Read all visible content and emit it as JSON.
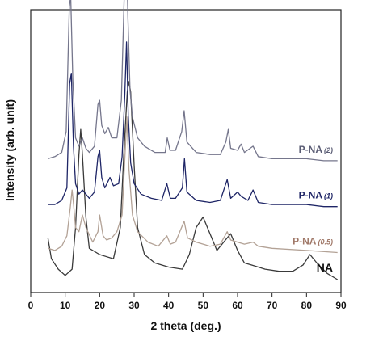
{
  "chart_data": {
    "type": "line",
    "title": "",
    "xlabel": "2 theta (deg.)",
    "ylabel": "Intensity (arb. unit)",
    "xlim": [
      0,
      90
    ],
    "xticks": [
      "0",
      "10",
      "20",
      "30",
      "40",
      "50",
      "60",
      "70",
      "80",
      "90"
    ],
    "y_ticks_shown": false,
    "grid": false,
    "legend": "inline labels at right of each curve",
    "series": [
      {
        "name": "NA",
        "label_main": "NA",
        "label_suffix": "",
        "color": "#3a3a3a",
        "label_color": "#111111",
        "baseline": 0.0,
        "points": [
          [
            5,
            0.2
          ],
          [
            6,
            0.1
          ],
          [
            8,
            0.05
          ],
          [
            10,
            0.02
          ],
          [
            12,
            0.05
          ],
          [
            13,
            0.25
          ],
          [
            14,
            0.6
          ],
          [
            14.5,
            0.72
          ],
          [
            15,
            0.6
          ],
          [
            16,
            0.3
          ],
          [
            17,
            0.15
          ],
          [
            20,
            0.12
          ],
          [
            24,
            0.1
          ],
          [
            26,
            0.25
          ],
          [
            27,
            0.6
          ],
          [
            28,
            0.9
          ],
          [
            28.5,
            0.95
          ],
          [
            29,
            0.9
          ],
          [
            30,
            0.55
          ],
          [
            31,
            0.25
          ],
          [
            33,
            0.12
          ],
          [
            36,
            0.08
          ],
          [
            40,
            0.06
          ],
          [
            44,
            0.05
          ],
          [
            46,
            0.12
          ],
          [
            48,
            0.25
          ],
          [
            50,
            0.3
          ],
          [
            52,
            0.22
          ],
          [
            54,
            0.14
          ],
          [
            56,
            0.18
          ],
          [
            58,
            0.22
          ],
          [
            60,
            0.14
          ],
          [
            62,
            0.08
          ],
          [
            64,
            0.07
          ],
          [
            68,
            0.05
          ],
          [
            72,
            0.04
          ],
          [
            76,
            0.04
          ],
          [
            79,
            0.07
          ],
          [
            81,
            0.12
          ],
          [
            83,
            0.08
          ],
          [
            86,
            0.03
          ],
          [
            89,
            0.0
          ]
        ]
      },
      {
        "name": "P-NA (0.5)",
        "label_main": "P-NA",
        "label_suffix": "(0.5)",
        "color": "#b3a296",
        "label_color": "#a07868",
        "baseline": 0.13,
        "points": [
          [
            5,
            0.02
          ],
          [
            7,
            0.01
          ],
          [
            9,
            0.03
          ],
          [
            10.5,
            0.08
          ],
          [
            11.5,
            0.22
          ],
          [
            12,
            0.3
          ],
          [
            12.5,
            0.22
          ],
          [
            13,
            0.12
          ],
          [
            14,
            0.1
          ],
          [
            15,
            0.18
          ],
          [
            16,
            0.12
          ],
          [
            18,
            0.05
          ],
          [
            19.5,
            0.1
          ],
          [
            20,
            0.18
          ],
          [
            21,
            0.08
          ],
          [
            22,
            0.06
          ],
          [
            23.5,
            0.07
          ],
          [
            25,
            0.1
          ],
          [
            26.5,
            0.18
          ],
          [
            27.3,
            0.45
          ],
          [
            27.9,
            0.65
          ],
          [
            28.5,
            0.4
          ],
          [
            29.5,
            0.18
          ],
          [
            31,
            0.1
          ],
          [
            34,
            0.05
          ],
          [
            37,
            0.03
          ],
          [
            39.5,
            0.08
          ],
          [
            40.5,
            0.04
          ],
          [
            42,
            0.05
          ],
          [
            44.5,
            0.15
          ],
          [
            45.5,
            0.07
          ],
          [
            48,
            0.05
          ],
          [
            52,
            0.03
          ],
          [
            55,
            0.04
          ],
          [
            57,
            0.1
          ],
          [
            58,
            0.06
          ],
          [
            60,
            0.05
          ],
          [
            62,
            0.04
          ],
          [
            64.5,
            0.05
          ],
          [
            66,
            0.03
          ],
          [
            70,
            0.02
          ],
          [
            80,
            0.01
          ],
          [
            89,
            0.0
          ]
        ]
      },
      {
        "name": "P-NA (1)",
        "label_main": "P-NA",
        "label_suffix": "(1)",
        "color": "#1e2566",
        "label_color": "#1e2566",
        "baseline": 0.34,
        "points": [
          [
            5,
            0.02
          ],
          [
            7,
            0.02
          ],
          [
            9,
            0.04
          ],
          [
            10.5,
            0.1
          ],
          [
            11.3,
            0.6
          ],
          [
            11.8,
            0.65
          ],
          [
            12.4,
            0.3
          ],
          [
            13,
            0.12
          ],
          [
            14,
            0.07
          ],
          [
            15,
            0.09
          ],
          [
            16,
            0.07
          ],
          [
            17,
            0.05
          ],
          [
            18.5,
            0.08
          ],
          [
            19.5,
            0.25
          ],
          [
            20,
            0.28
          ],
          [
            20.6,
            0.15
          ],
          [
            21.5,
            0.1
          ],
          [
            23,
            0.15
          ],
          [
            24,
            0.11
          ],
          [
            25.5,
            0.12
          ],
          [
            26.5,
            0.25
          ],
          [
            27.3,
            0.55
          ],
          [
            27.8,
            0.8
          ],
          [
            28.3,
            0.45
          ],
          [
            29,
            0.22
          ],
          [
            30,
            0.12
          ],
          [
            32,
            0.07
          ],
          [
            35,
            0.05
          ],
          [
            38,
            0.04
          ],
          [
            39.5,
            0.12
          ],
          [
            40.5,
            0.05
          ],
          [
            42,
            0.05
          ],
          [
            44,
            0.1
          ],
          [
            44.6,
            0.24
          ],
          [
            45.3,
            0.08
          ],
          [
            48,
            0.04
          ],
          [
            52,
            0.03
          ],
          [
            55,
            0.04
          ],
          [
            57,
            0.14
          ],
          [
            58,
            0.05
          ],
          [
            60,
            0.08
          ],
          [
            61,
            0.06
          ],
          [
            63,
            0.04
          ],
          [
            64.5,
            0.09
          ],
          [
            66,
            0.03
          ],
          [
            70,
            0.02
          ],
          [
            75,
            0.02
          ],
          [
            80,
            0.02
          ],
          [
            85,
            0.01
          ],
          [
            89,
            0.01
          ]
        ]
      },
      {
        "name": "P-NA (2)",
        "label_main": "P-NA",
        "label_suffix": "(2)",
        "color": "#75768c",
        "label_color": "#5a5c74",
        "baseline": 0.56,
        "points": [
          [
            5,
            0.02
          ],
          [
            7,
            0.03
          ],
          [
            9,
            0.05
          ],
          [
            10.3,
            0.15
          ],
          [
            11.2,
            0.75
          ],
          [
            11.6,
            0.8
          ],
          [
            12.2,
            0.4
          ],
          [
            13,
            0.12
          ],
          [
            14,
            0.08
          ],
          [
            15,
            0.12
          ],
          [
            16,
            0.07
          ],
          [
            17,
            0.05
          ],
          [
            18.5,
            0.08
          ],
          [
            19.5,
            0.28
          ],
          [
            20,
            0.3
          ],
          [
            20.6,
            0.18
          ],
          [
            21.5,
            0.14
          ],
          [
            22.5,
            0.17
          ],
          [
            23.5,
            0.12
          ],
          [
            25,
            0.12
          ],
          [
            26.3,
            0.3
          ],
          [
            27.2,
            0.85
          ],
          [
            27.7,
            1.1
          ],
          [
            28.2,
            0.7
          ],
          [
            28.8,
            0.35
          ],
          [
            29.5,
            0.22
          ],
          [
            31,
            0.12
          ],
          [
            33,
            0.08
          ],
          [
            36,
            0.05
          ],
          [
            39,
            0.05
          ],
          [
            39.6,
            0.12
          ],
          [
            40.4,
            0.06
          ],
          [
            42,
            0.06
          ],
          [
            43.8,
            0.15
          ],
          [
            44.5,
            0.25
          ],
          [
            45.3,
            0.1
          ],
          [
            48,
            0.05
          ],
          [
            52,
            0.04
          ],
          [
            55,
            0.04
          ],
          [
            56.6,
            0.1
          ],
          [
            57.3,
            0.16
          ],
          [
            58,
            0.07
          ],
          [
            60,
            0.06
          ],
          [
            61,
            0.09
          ],
          [
            62,
            0.05
          ],
          [
            64.5,
            0.08
          ],
          [
            66,
            0.03
          ],
          [
            70,
            0.02
          ],
          [
            75,
            0.02
          ],
          [
            80,
            0.02
          ],
          [
            85,
            0.01
          ],
          [
            89,
            0.01
          ]
        ]
      }
    ]
  }
}
